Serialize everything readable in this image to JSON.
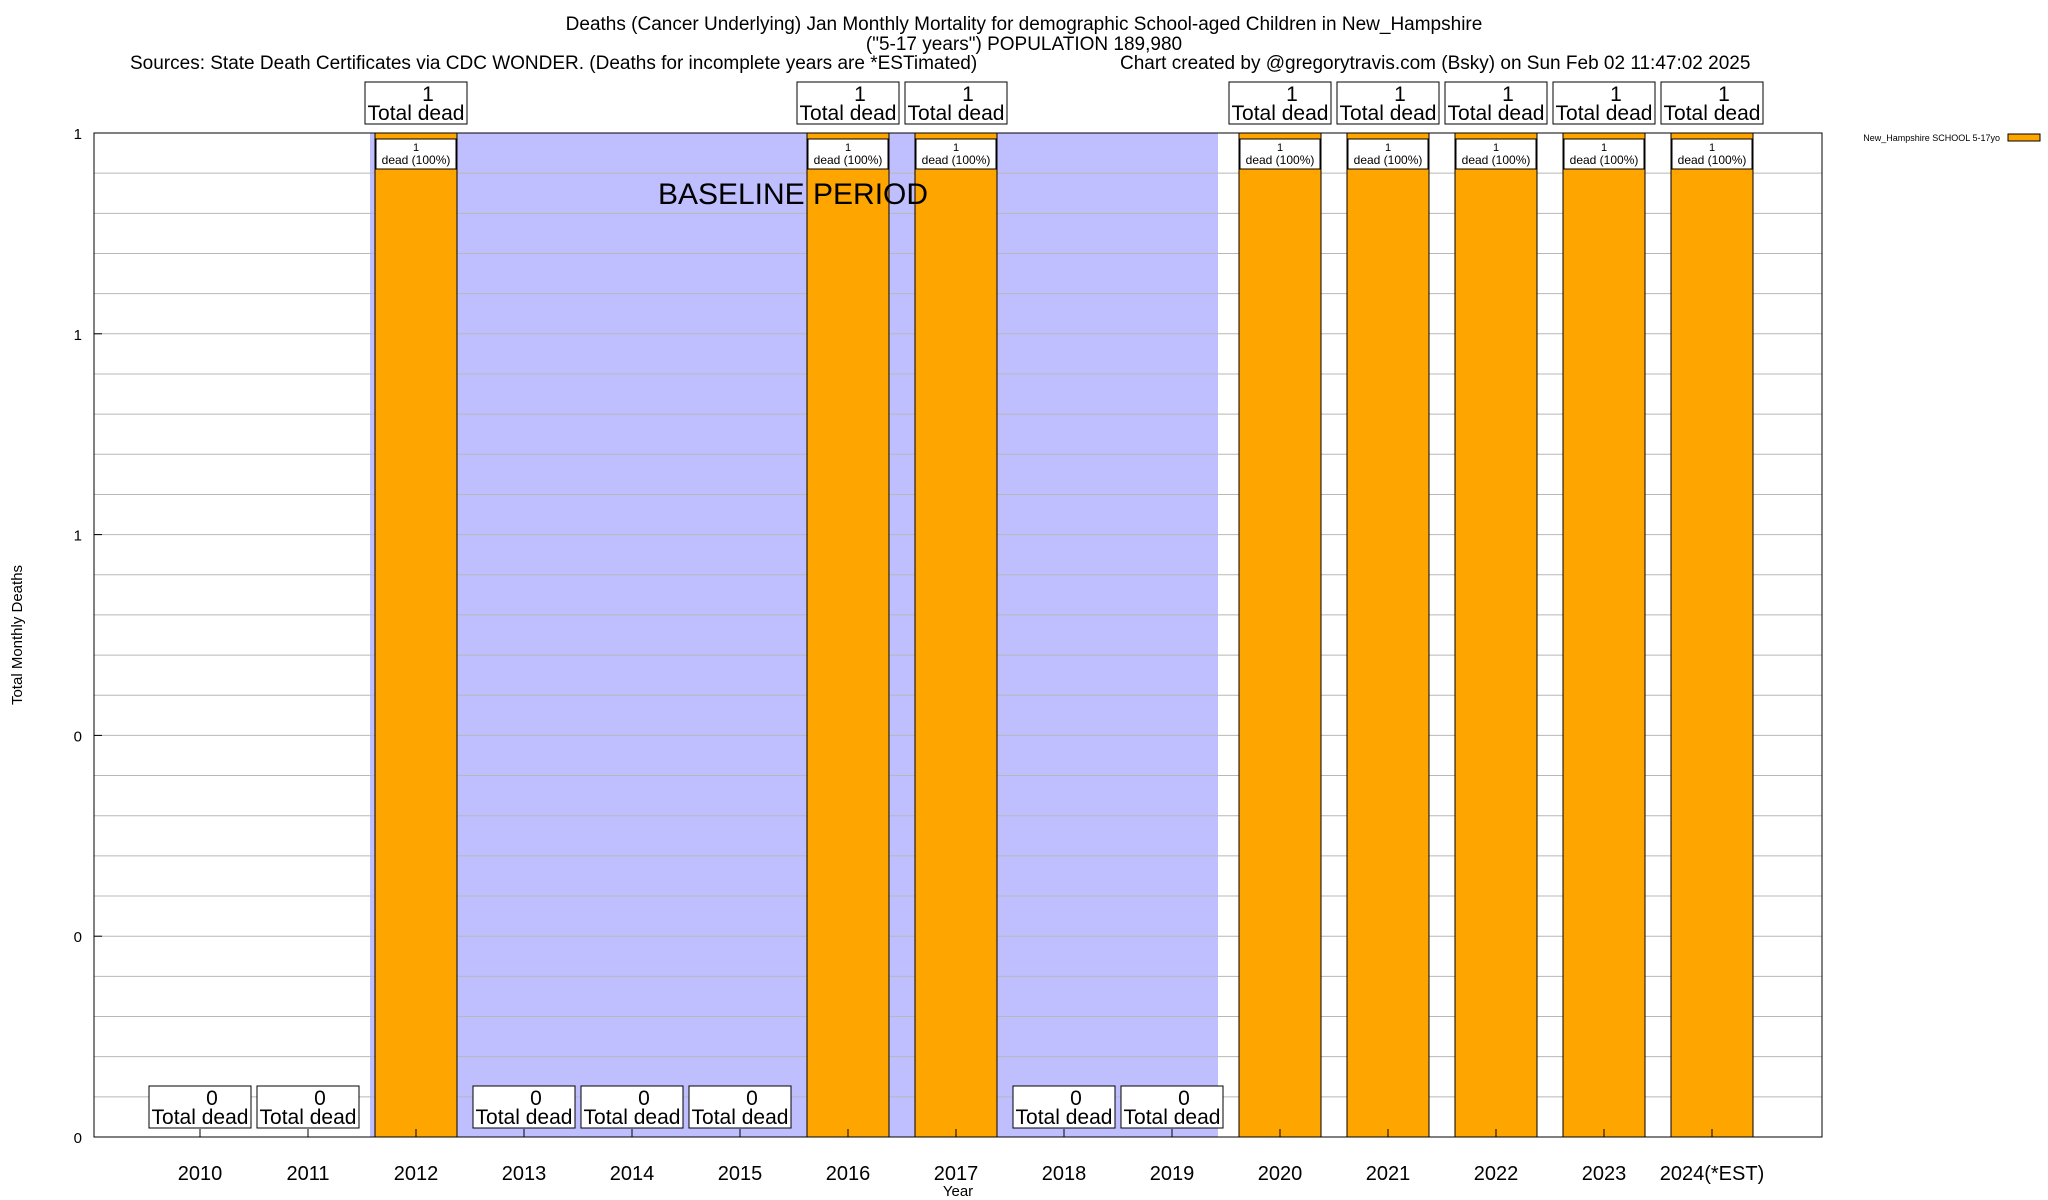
{
  "chart_data": {
    "type": "bar",
    "title": "Deaths (Cancer Underlying) Jan Monthly Mortality for demographic School-aged Children in New_Hampshire",
    "subtitle": "(\"5-17 years\") POPULATION 189,980",
    "source": "Sources: State Death Certificates via CDC WONDER. (Deaths for incomplete years are *ESTimated)",
    "credit": "Chart created by @gregorytravis.com (Bsky) on Sun Feb 02 11:47:02 2025",
    "xlabel": "Year",
    "ylabel": "Total Monthly Deaths",
    "ylim": [
      0,
      1
    ],
    "y_tick_labels": [
      "0",
      "0",
      "0",
      "1",
      "1",
      "1"
    ],
    "grid": true,
    "legend_position": "top-right",
    "baseline_label": "BASELINE PERIOD",
    "baseline_range": [
      "2012",
      "2019"
    ],
    "categories": [
      "2010",
      "2011",
      "2012",
      "2013",
      "2014",
      "2015",
      "2016",
      "2017",
      "2018",
      "2019",
      "2020",
      "2021",
      "2022",
      "2023",
      "2024(*EST)"
    ],
    "series": [
      {
        "name": "New_Hampshire SCHOOL 5-17yo",
        "values": [
          0,
          0,
          1,
          0,
          0,
          0,
          1,
          1,
          0,
          0,
          1,
          1,
          1,
          1,
          1
        ]
      }
    ],
    "total_labels": [
      "0",
      "0",
      "1",
      "0",
      "0",
      "0",
      "1",
      "1",
      "0",
      "0",
      "1",
      "1",
      "1",
      "1",
      "1"
    ],
    "total_suffix": "Total dead",
    "bar_labels": [
      "1",
      "1",
      "1",
      "1",
      "1",
      "1",
      "1",
      "1"
    ],
    "bar_label_suffix": "dead (100%)",
    "colors": {
      "bar": "#ffa500",
      "baseline": "#bfbfff",
      "grid": "#b8b8b8"
    }
  }
}
